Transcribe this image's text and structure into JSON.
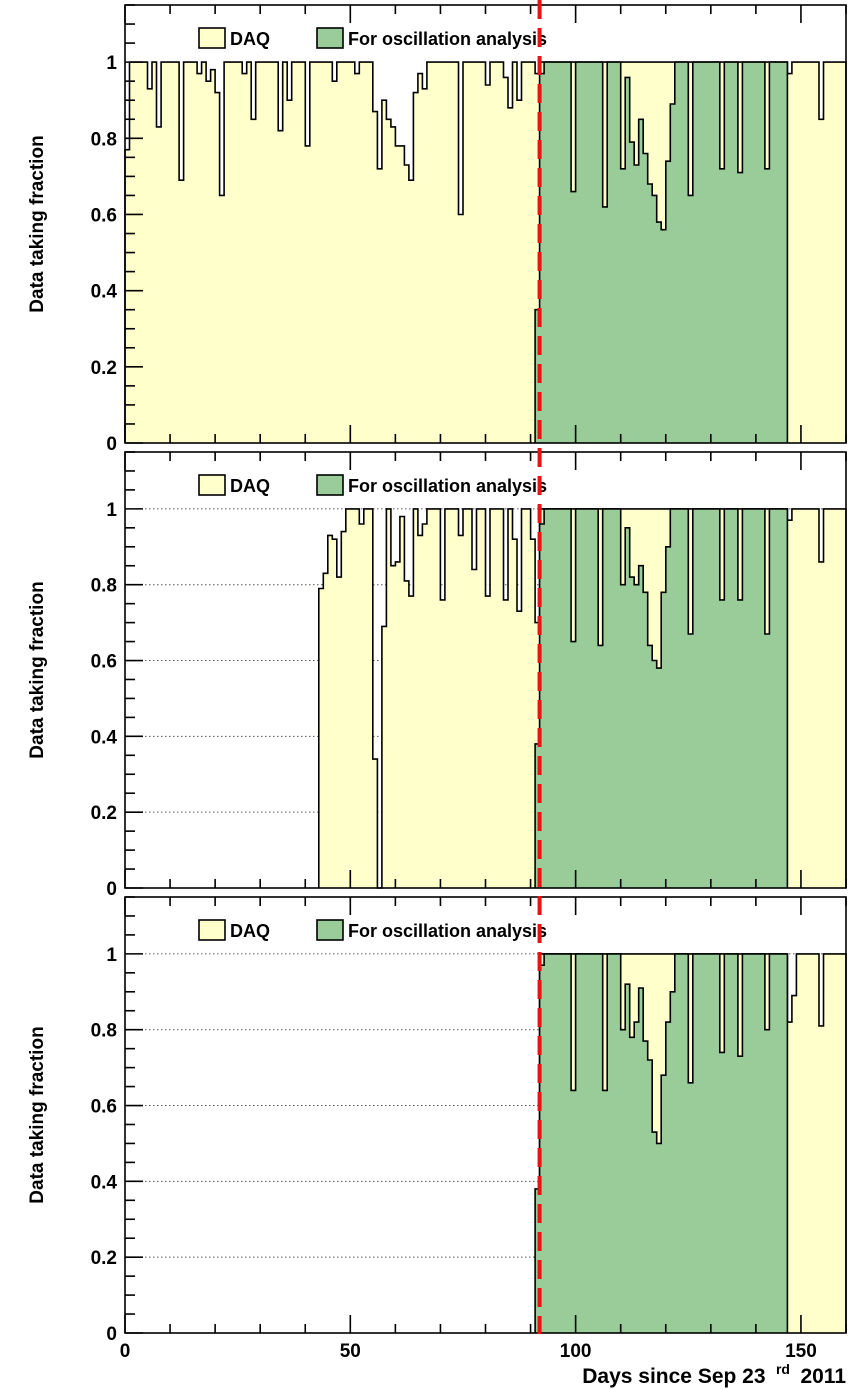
{
  "chart_data": {
    "type": "area",
    "xlabel_main": "Days since Sep 23",
    "xlabel_sup": "rd",
    "xlabel_year": "2011",
    "x_ticks": [
      "0",
      "50",
      "100",
      "150"
    ],
    "xlim": [
      0,
      160
    ],
    "cut_line_day": 92,
    "colors": {
      "daq": "#ffffcc",
      "osc": "#99cc99",
      "cut_line": "#ee1111"
    },
    "panels": [
      {
        "ylabel": "Data taking fraction",
        "ylim": [
          0,
          1.15
        ],
        "y_ticks": [
          "0",
          "0.2",
          "0.4",
          "0.6",
          "0.8",
          "1"
        ],
        "grid": false,
        "legend": [
          {
            "key": "daq",
            "label": "DAQ"
          },
          {
            "key": "osc",
            "label": "For oscillation analysis"
          }
        ],
        "daq": [
          {
            "x": 0,
            "y": 0.77
          },
          {
            "x": 1,
            "y": 1
          },
          {
            "x": 4,
            "y": 1
          },
          {
            "x": 5,
            "y": 0.93
          },
          {
            "x": 6,
            "y": 1
          },
          {
            "x": 7,
            "y": 0.83
          },
          {
            "x": 8,
            "y": 1
          },
          {
            "x": 12,
            "y": 0.69
          },
          {
            "x": 13,
            "y": 1
          },
          {
            "x": 16,
            "y": 0.97
          },
          {
            "x": 17,
            "y": 1
          },
          {
            "x": 18,
            "y": 0.95
          },
          {
            "x": 19,
            "y": 0.98
          },
          {
            "x": 20,
            "y": 0.92
          },
          {
            "x": 21,
            "y": 0.65
          },
          {
            "x": 22,
            "y": 1
          },
          {
            "x": 26,
            "y": 0.97
          },
          {
            "x": 27,
            "y": 1
          },
          {
            "x": 28,
            "y": 0.85
          },
          {
            "x": 29,
            "y": 1
          },
          {
            "x": 34,
            "y": 0.82
          },
          {
            "x": 35,
            "y": 1
          },
          {
            "x": 36,
            "y": 0.9
          },
          {
            "x": 37,
            "y": 1
          },
          {
            "x": 40,
            "y": 0.78
          },
          {
            "x": 41,
            "y": 1
          },
          {
            "x": 46,
            "y": 0.95
          },
          {
            "x": 47,
            "y": 1
          },
          {
            "x": 51,
            "y": 0.97
          },
          {
            "x": 52,
            "y": 1
          },
          {
            "x": 55,
            "y": 0.87
          },
          {
            "x": 56,
            "y": 0.72
          },
          {
            "x": 57,
            "y": 0.9
          },
          {
            "x": 58,
            "y": 0.85
          },
          {
            "x": 59,
            "y": 0.83
          },
          {
            "x": 60,
            "y": 0.78
          },
          {
            "x": 62,
            "y": 0.73
          },
          {
            "x": 63,
            "y": 0.69
          },
          {
            "x": 64,
            "y": 0.92
          },
          {
            "x": 65,
            "y": 0.97
          },
          {
            "x": 66,
            "y": 0.93
          },
          {
            "x": 67,
            "y": 1
          },
          {
            "x": 74,
            "y": 0.6
          },
          {
            "x": 75,
            "y": 1
          },
          {
            "x": 80,
            "y": 0.94
          },
          {
            "x": 81,
            "y": 1
          },
          {
            "x": 84,
            "y": 0.96
          },
          {
            "x": 85,
            "y": 0.88
          },
          {
            "x": 86,
            "y": 1
          },
          {
            "x": 87,
            "y": 0.9
          },
          {
            "x": 88,
            "y": 1
          },
          {
            "x": 91,
            "y": 0.97
          },
          {
            "x": 92,
            "y": 1
          },
          {
            "x": 93,
            "y": 1
          },
          {
            "x": 146,
            "y": 1
          },
          {
            "x": 147,
            "y": 0.97
          },
          {
            "x": 148,
            "y": 1
          },
          {
            "x": 154,
            "y": 0.85
          },
          {
            "x": 155,
            "y": 1
          }
        ],
        "osc": [
          {
            "x": 91,
            "y": 0.35
          },
          {
            "x": 92,
            "y": 0.97
          },
          {
            "x": 93,
            "y": 1
          },
          {
            "x": 99,
            "y": 0.66
          },
          {
            "x": 100,
            "y": 1
          },
          {
            "x": 106,
            "y": 0.62
          },
          {
            "x": 107,
            "y": 1
          },
          {
            "x": 110,
            "y": 0.72
          },
          {
            "x": 111,
            "y": 0.96
          },
          {
            "x": 112,
            "y": 0.79
          },
          {
            "x": 113,
            "y": 0.73
          },
          {
            "x": 114,
            "y": 0.85
          },
          {
            "x": 115,
            "y": 0.76
          },
          {
            "x": 116,
            "y": 0.68
          },
          {
            "x": 117,
            "y": 0.65
          },
          {
            "x": 118,
            "y": 0.58
          },
          {
            "x": 119,
            "y": 0.56
          },
          {
            "x": 120,
            "y": 0.74
          },
          {
            "x": 121,
            "y": 0.89
          },
          {
            "x": 122,
            "y": 1
          },
          {
            "x": 125,
            "y": 0.65
          },
          {
            "x": 126,
            "y": 1
          },
          {
            "x": 132,
            "y": 0.72
          },
          {
            "x": 133,
            "y": 1
          },
          {
            "x": 136,
            "y": 0.71
          },
          {
            "x": 137,
            "y": 1
          },
          {
            "x": 142,
            "y": 0.72
          },
          {
            "x": 143,
            "y": 1
          },
          {
            "x": 147,
            "y": 0
          }
        ]
      },
      {
        "ylabel": "Data taking fraction",
        "ylim": [
          0,
          1.15
        ],
        "y_ticks": [
          "0",
          "0.2",
          "0.4",
          "0.6",
          "0.8",
          "1"
        ],
        "grid": true,
        "legend": [
          {
            "key": "daq",
            "label": "DAQ"
          },
          {
            "key": "osc",
            "label": "For oscillation analysis"
          }
        ],
        "daq": [
          {
            "x": 43,
            "y": 0.79
          },
          {
            "x": 44,
            "y": 0.83
          },
          {
            "x": 45,
            "y": 0.93
          },
          {
            "x": 46,
            "y": 0.92
          },
          {
            "x": 47,
            "y": 0.82
          },
          {
            "x": 48,
            "y": 0.94
          },
          {
            "x": 49,
            "y": 1
          },
          {
            "x": 52,
            "y": 0.96
          },
          {
            "x": 53,
            "y": 1
          },
          {
            "x": 55,
            "y": 0.34
          },
          {
            "x": 56,
            "y": 0
          },
          {
            "x": 57,
            "y": 0.69
          },
          {
            "x": 58,
            "y": 1
          },
          {
            "x": 59,
            "y": 0.85
          },
          {
            "x": 60,
            "y": 0.86
          },
          {
            "x": 61,
            "y": 0.98
          },
          {
            "x": 62,
            "y": 0.81
          },
          {
            "x": 63,
            "y": 0.77
          },
          {
            "x": 64,
            "y": 1
          },
          {
            "x": 65,
            "y": 0.93
          },
          {
            "x": 66,
            "y": 0.96
          },
          {
            "x": 67,
            "y": 1
          },
          {
            "x": 70,
            "y": 0.76
          },
          {
            "x": 71,
            "y": 1
          },
          {
            "x": 74,
            "y": 0.93
          },
          {
            "x": 75,
            "y": 1
          },
          {
            "x": 77,
            "y": 0.84
          },
          {
            "x": 78,
            "y": 1
          },
          {
            "x": 80,
            "y": 0.77
          },
          {
            "x": 81,
            "y": 1
          },
          {
            "x": 84,
            "y": 0.76
          },
          {
            "x": 85,
            "y": 1
          },
          {
            "x": 86,
            "y": 0.92
          },
          {
            "x": 87,
            "y": 0.73
          },
          {
            "x": 88,
            "y": 1
          },
          {
            "x": 90,
            "y": 0.92
          },
          {
            "x": 91,
            "y": 0.7
          },
          {
            "x": 92,
            "y": 1
          },
          {
            "x": 93,
            "y": 1
          },
          {
            "x": 146,
            "y": 1
          },
          {
            "x": 147,
            "y": 0.97
          },
          {
            "x": 148,
            "y": 1
          },
          {
            "x": 154,
            "y": 0.86
          },
          {
            "x": 155,
            "y": 1
          }
        ],
        "osc": [
          {
            "x": 91,
            "y": 0.38
          },
          {
            "x": 92,
            "y": 0.96
          },
          {
            "x": 93,
            "y": 1
          },
          {
            "x": 99,
            "y": 0.65
          },
          {
            "x": 100,
            "y": 1
          },
          {
            "x": 105,
            "y": 0.64
          },
          {
            "x": 106,
            "y": 1
          },
          {
            "x": 110,
            "y": 0.8
          },
          {
            "x": 111,
            "y": 0.95
          },
          {
            "x": 112,
            "y": 0.82
          },
          {
            "x": 113,
            "y": 0.8
          },
          {
            "x": 114,
            "y": 0.85
          },
          {
            "x": 115,
            "y": 0.78
          },
          {
            "x": 116,
            "y": 0.64
          },
          {
            "x": 117,
            "y": 0.6
          },
          {
            "x": 118,
            "y": 0.58
          },
          {
            "x": 119,
            "y": 0.78
          },
          {
            "x": 120,
            "y": 0.9
          },
          {
            "x": 121,
            "y": 1
          },
          {
            "x": 125,
            "y": 0.67
          },
          {
            "x": 126,
            "y": 1
          },
          {
            "x": 132,
            "y": 0.76
          },
          {
            "x": 133,
            "y": 1
          },
          {
            "x": 136,
            "y": 0.76
          },
          {
            "x": 137,
            "y": 1
          },
          {
            "x": 142,
            "y": 0.67
          },
          {
            "x": 143,
            "y": 1
          },
          {
            "x": 147,
            "y": 0
          }
        ]
      },
      {
        "ylabel": "Data taking fraction",
        "ylim": [
          0,
          1.15
        ],
        "y_ticks": [
          "0",
          "0.2",
          "0.4",
          "0.6",
          "0.8",
          "1"
        ],
        "grid": true,
        "legend": [
          {
            "key": "daq",
            "label": "DAQ"
          },
          {
            "key": "osc",
            "label": "For oscillation analysis"
          }
        ],
        "daq": [
          {
            "x": 92,
            "y": 1
          },
          {
            "x": 93,
            "y": 1
          },
          {
            "x": 146,
            "y": 1
          },
          {
            "x": 147,
            "y": 0.82
          },
          {
            "x": 148,
            "y": 0.89
          },
          {
            "x": 149,
            "y": 1
          },
          {
            "x": 154,
            "y": 0.81
          },
          {
            "x": 155,
            "y": 1
          }
        ],
        "osc": [
          {
            "x": 91,
            "y": 0.38
          },
          {
            "x": 92,
            "y": 0.97
          },
          {
            "x": 93,
            "y": 1
          },
          {
            "x": 99,
            "y": 0.64
          },
          {
            "x": 100,
            "y": 1
          },
          {
            "x": 106,
            "y": 0.64
          },
          {
            "x": 107,
            "y": 1
          },
          {
            "x": 110,
            "y": 0.8
          },
          {
            "x": 111,
            "y": 0.92
          },
          {
            "x": 112,
            "y": 0.78
          },
          {
            "x": 113,
            "y": 0.82
          },
          {
            "x": 114,
            "y": 0.91
          },
          {
            "x": 115,
            "y": 0.77
          },
          {
            "x": 116,
            "y": 0.72
          },
          {
            "x": 117,
            "y": 0.53
          },
          {
            "x": 118,
            "y": 0.5
          },
          {
            "x": 119,
            "y": 0.68
          },
          {
            "x": 120,
            "y": 0.82
          },
          {
            "x": 121,
            "y": 0.9
          },
          {
            "x": 122,
            "y": 1
          },
          {
            "x": 125,
            "y": 0.66
          },
          {
            "x": 126,
            "y": 1
          },
          {
            "x": 132,
            "y": 0.74
          },
          {
            "x": 133,
            "y": 1
          },
          {
            "x": 136,
            "y": 0.73
          },
          {
            "x": 137,
            "y": 1
          },
          {
            "x": 142,
            "y": 0.8
          },
          {
            "x": 143,
            "y": 1
          },
          {
            "x": 147,
            "y": 0
          }
        ]
      }
    ]
  }
}
